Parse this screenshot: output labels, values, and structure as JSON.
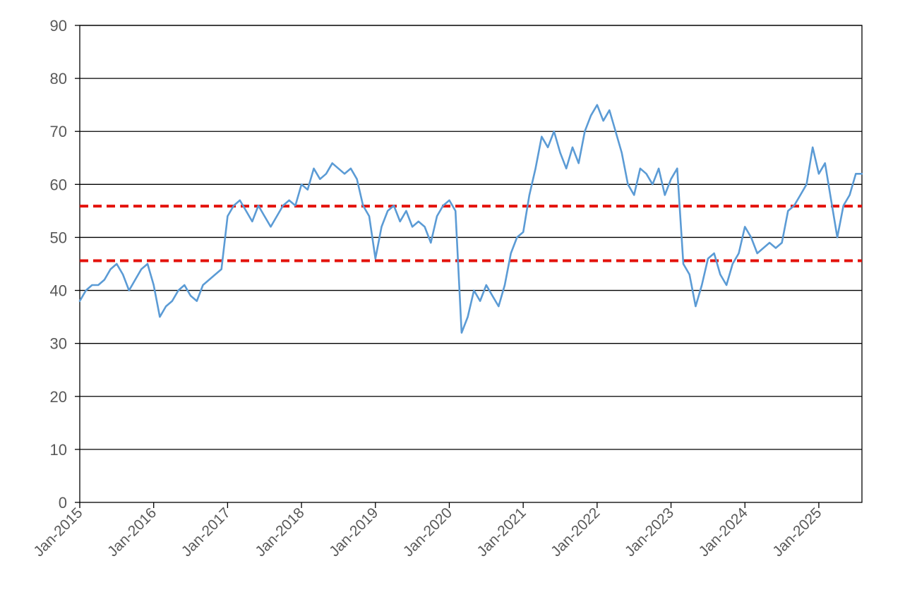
{
  "chart_data": {
    "type": "line",
    "title": "",
    "xlabel": "",
    "ylabel": "",
    "ylim": [
      0,
      90
    ],
    "xlim": [
      "2015-01",
      "2025-08"
    ],
    "y_ticks": [
      "0",
      "10",
      "20",
      "30",
      "40",
      "50",
      "60",
      "70",
      "80",
      "90"
    ],
    "x_ticks": [
      "Jan-2015",
      "Jan-2016",
      "Jan-2017",
      "Jan-2018",
      "Jan-2019",
      "Jan-2020",
      "Jan-2021",
      "Jan-2022",
      "Jan-2023",
      "Jan-2024",
      "Jan-2025"
    ],
    "grid": "horizontal",
    "legend": "none",
    "series": [
      {
        "color": "#5b9bd5",
        "x": [
          "2015-01",
          "2015-02",
          "2015-03",
          "2015-04",
          "2015-05",
          "2015-06",
          "2015-07",
          "2015-08",
          "2015-09",
          "2015-10",
          "2015-11",
          "2015-12",
          "2016-01",
          "2016-02",
          "2016-03",
          "2016-04",
          "2016-05",
          "2016-06",
          "2016-07",
          "2016-08",
          "2016-09",
          "2016-10",
          "2016-11",
          "2016-12",
          "2017-01",
          "2017-02",
          "2017-03",
          "2017-04",
          "2017-05",
          "2017-06",
          "2017-07",
          "2017-08",
          "2017-09",
          "2017-10",
          "2017-11",
          "2017-12",
          "2018-01",
          "2018-02",
          "2018-03",
          "2018-04",
          "2018-05",
          "2018-06",
          "2018-07",
          "2018-08",
          "2018-09",
          "2018-10",
          "2018-11",
          "2018-12",
          "2019-01",
          "2019-02",
          "2019-03",
          "2019-04",
          "2019-05",
          "2019-06",
          "2019-07",
          "2019-08",
          "2019-09",
          "2019-10",
          "2019-11",
          "2019-12",
          "2020-01",
          "2020-02",
          "2020-03",
          "2020-04",
          "2020-05",
          "2020-06",
          "2020-07",
          "2020-08",
          "2020-09",
          "2020-10",
          "2020-11",
          "2020-12",
          "2021-01",
          "2021-02",
          "2021-03",
          "2021-04",
          "2021-05",
          "2021-06",
          "2021-07",
          "2021-08",
          "2021-09",
          "2021-10",
          "2021-11",
          "2021-12",
          "2022-01",
          "2022-02",
          "2022-03",
          "2022-04",
          "2022-05",
          "2022-06",
          "2022-07",
          "2022-08",
          "2022-09",
          "2022-10",
          "2022-11",
          "2022-12",
          "2023-01",
          "2023-02",
          "2023-03",
          "2023-04",
          "2023-05",
          "2023-06",
          "2023-07",
          "2023-08",
          "2023-09",
          "2023-10",
          "2023-11",
          "2023-12",
          "2024-01",
          "2024-02",
          "2024-03",
          "2024-04",
          "2024-05",
          "2024-06",
          "2024-07",
          "2024-08",
          "2024-09",
          "2024-10",
          "2024-11",
          "2024-12",
          "2025-01",
          "2025-02",
          "2025-03",
          "2025-04",
          "2025-05",
          "2025-06",
          "2025-07",
          "2025-08"
        ],
        "values": [
          38,
          40,
          41,
          41,
          42,
          44,
          45,
          43,
          40,
          42,
          44,
          45,
          41,
          35,
          37,
          38,
          40,
          41,
          39,
          38,
          41,
          42,
          43,
          44,
          54,
          56,
          57,
          55,
          53,
          56,
          54,
          52,
          54,
          56,
          57,
          56,
          60,
          59,
          63,
          61,
          62,
          64,
          63,
          62,
          63,
          61,
          56,
          54,
          46,
          52,
          55,
          56,
          53,
          55,
          52,
          53,
          52,
          49,
          54,
          56,
          57,
          55,
          32,
          35,
          40,
          38,
          41,
          39,
          37,
          41,
          47,
          50,
          51,
          58,
          63,
          69,
          67,
          70,
          66,
          63,
          67,
          64,
          70,
          73,
          75,
          72,
          74,
          70,
          66,
          60,
          58,
          63,
          62,
          60,
          63,
          58,
          61,
          63,
          45,
          43,
          37,
          41,
          46,
          47,
          43,
          41,
          45,
          47,
          52,
          50,
          47,
          48,
          49,
          48,
          49,
          55,
          56,
          58,
          60,
          67,
          62,
          64,
          57,
          50,
          56,
          58,
          62,
          62
        ]
      }
    ],
    "reference_lines": [
      {
        "y": 55.9,
        "color": "#e3120b",
        "style": "dashed"
      },
      {
        "y": 45.6,
        "color": "#e3120b",
        "style": "dashed"
      }
    ]
  }
}
